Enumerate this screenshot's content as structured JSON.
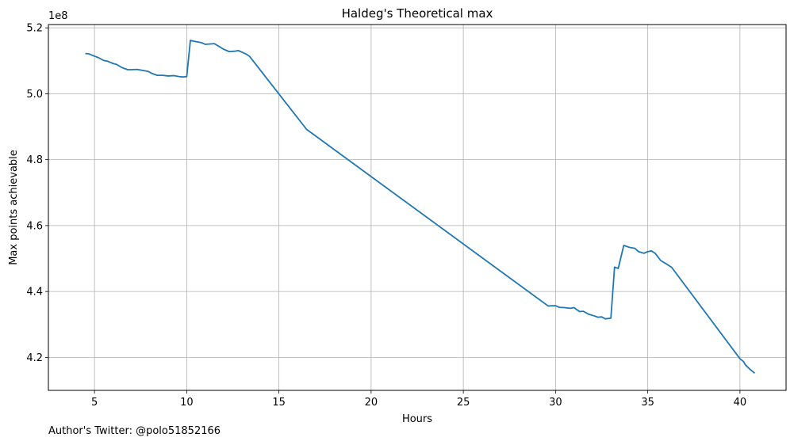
{
  "chart_data": {
    "type": "line",
    "title": "Haldeg's Theoretical max",
    "xlabel": "Hours",
    "ylabel": "Max points achievable",
    "y_offset_label": "1e8",
    "xlim": [
      2.5,
      42.5
    ],
    "ylim": [
      4.1,
      5.21
    ],
    "x_ticks": [
      5,
      10,
      15,
      20,
      25,
      30,
      35,
      40
    ],
    "x_tick_labels": [
      "5",
      "10",
      "15",
      "20",
      "25",
      "30",
      "35",
      "40"
    ],
    "y_ticks": [
      4.2,
      4.4,
      4.6,
      4.8,
      5.0,
      5.2
    ],
    "y_tick_labels": [
      "4.2",
      "4.4",
      "4.6",
      "4.8",
      "5.0",
      "5.2"
    ],
    "grid": true,
    "series_color": "#1f77b4",
    "series": [
      {
        "name": "",
        "x": [
          4.5,
          4.7,
          5.0,
          5.2,
          5.5,
          5.7,
          6.0,
          6.2,
          6.5,
          6.8,
          7.0,
          7.3,
          7.6,
          7.9,
          8.1,
          8.4,
          8.7,
          9.0,
          9.3,
          9.6,
          9.8,
          10.0,
          10.2,
          10.5,
          10.8,
          11.0,
          11.5,
          11.8,
          12.0,
          12.3,
          12.6,
          12.8,
          13.0,
          13.2,
          13.4,
          16.5,
          29.6,
          30.0,
          30.2,
          30.5,
          30.8,
          31.0,
          31.3,
          31.5,
          31.8,
          32.1,
          32.3,
          32.5,
          32.7,
          33.0,
          33.2,
          33.4,
          33.7,
          34.0,
          34.3,
          34.5,
          34.8,
          35.0,
          35.2,
          35.4,
          35.7,
          36.0,
          36.3,
          40.0,
          40.2,
          40.3,
          40.5,
          40.8
        ],
        "y": [
          5.122,
          5.121,
          5.114,
          5.11,
          5.101,
          5.099,
          5.092,
          5.089,
          5.079,
          5.073,
          5.073,
          5.074,
          5.071,
          5.068,
          5.062,
          5.056,
          5.056,
          5.054,
          5.055,
          5.052,
          5.051,
          5.052,
          5.162,
          5.158,
          5.155,
          5.15,
          5.152,
          5.142,
          5.135,
          5.128,
          5.129,
          5.131,
          5.126,
          5.121,
          5.114,
          4.892,
          4.356,
          4.357,
          4.352,
          4.351,
          4.349,
          4.351,
          4.339,
          4.34,
          4.331,
          4.326,
          4.322,
          4.323,
          4.317,
          4.319,
          4.474,
          4.47,
          4.54,
          4.534,
          4.531,
          4.521,
          4.516,
          4.521,
          4.523,
          4.516,
          4.494,
          4.484,
          4.473,
          4.196,
          4.187,
          4.177,
          4.166,
          4.152
        ]
      }
    ]
  },
  "footer_text": "Author's Twitter: @polo51852166"
}
